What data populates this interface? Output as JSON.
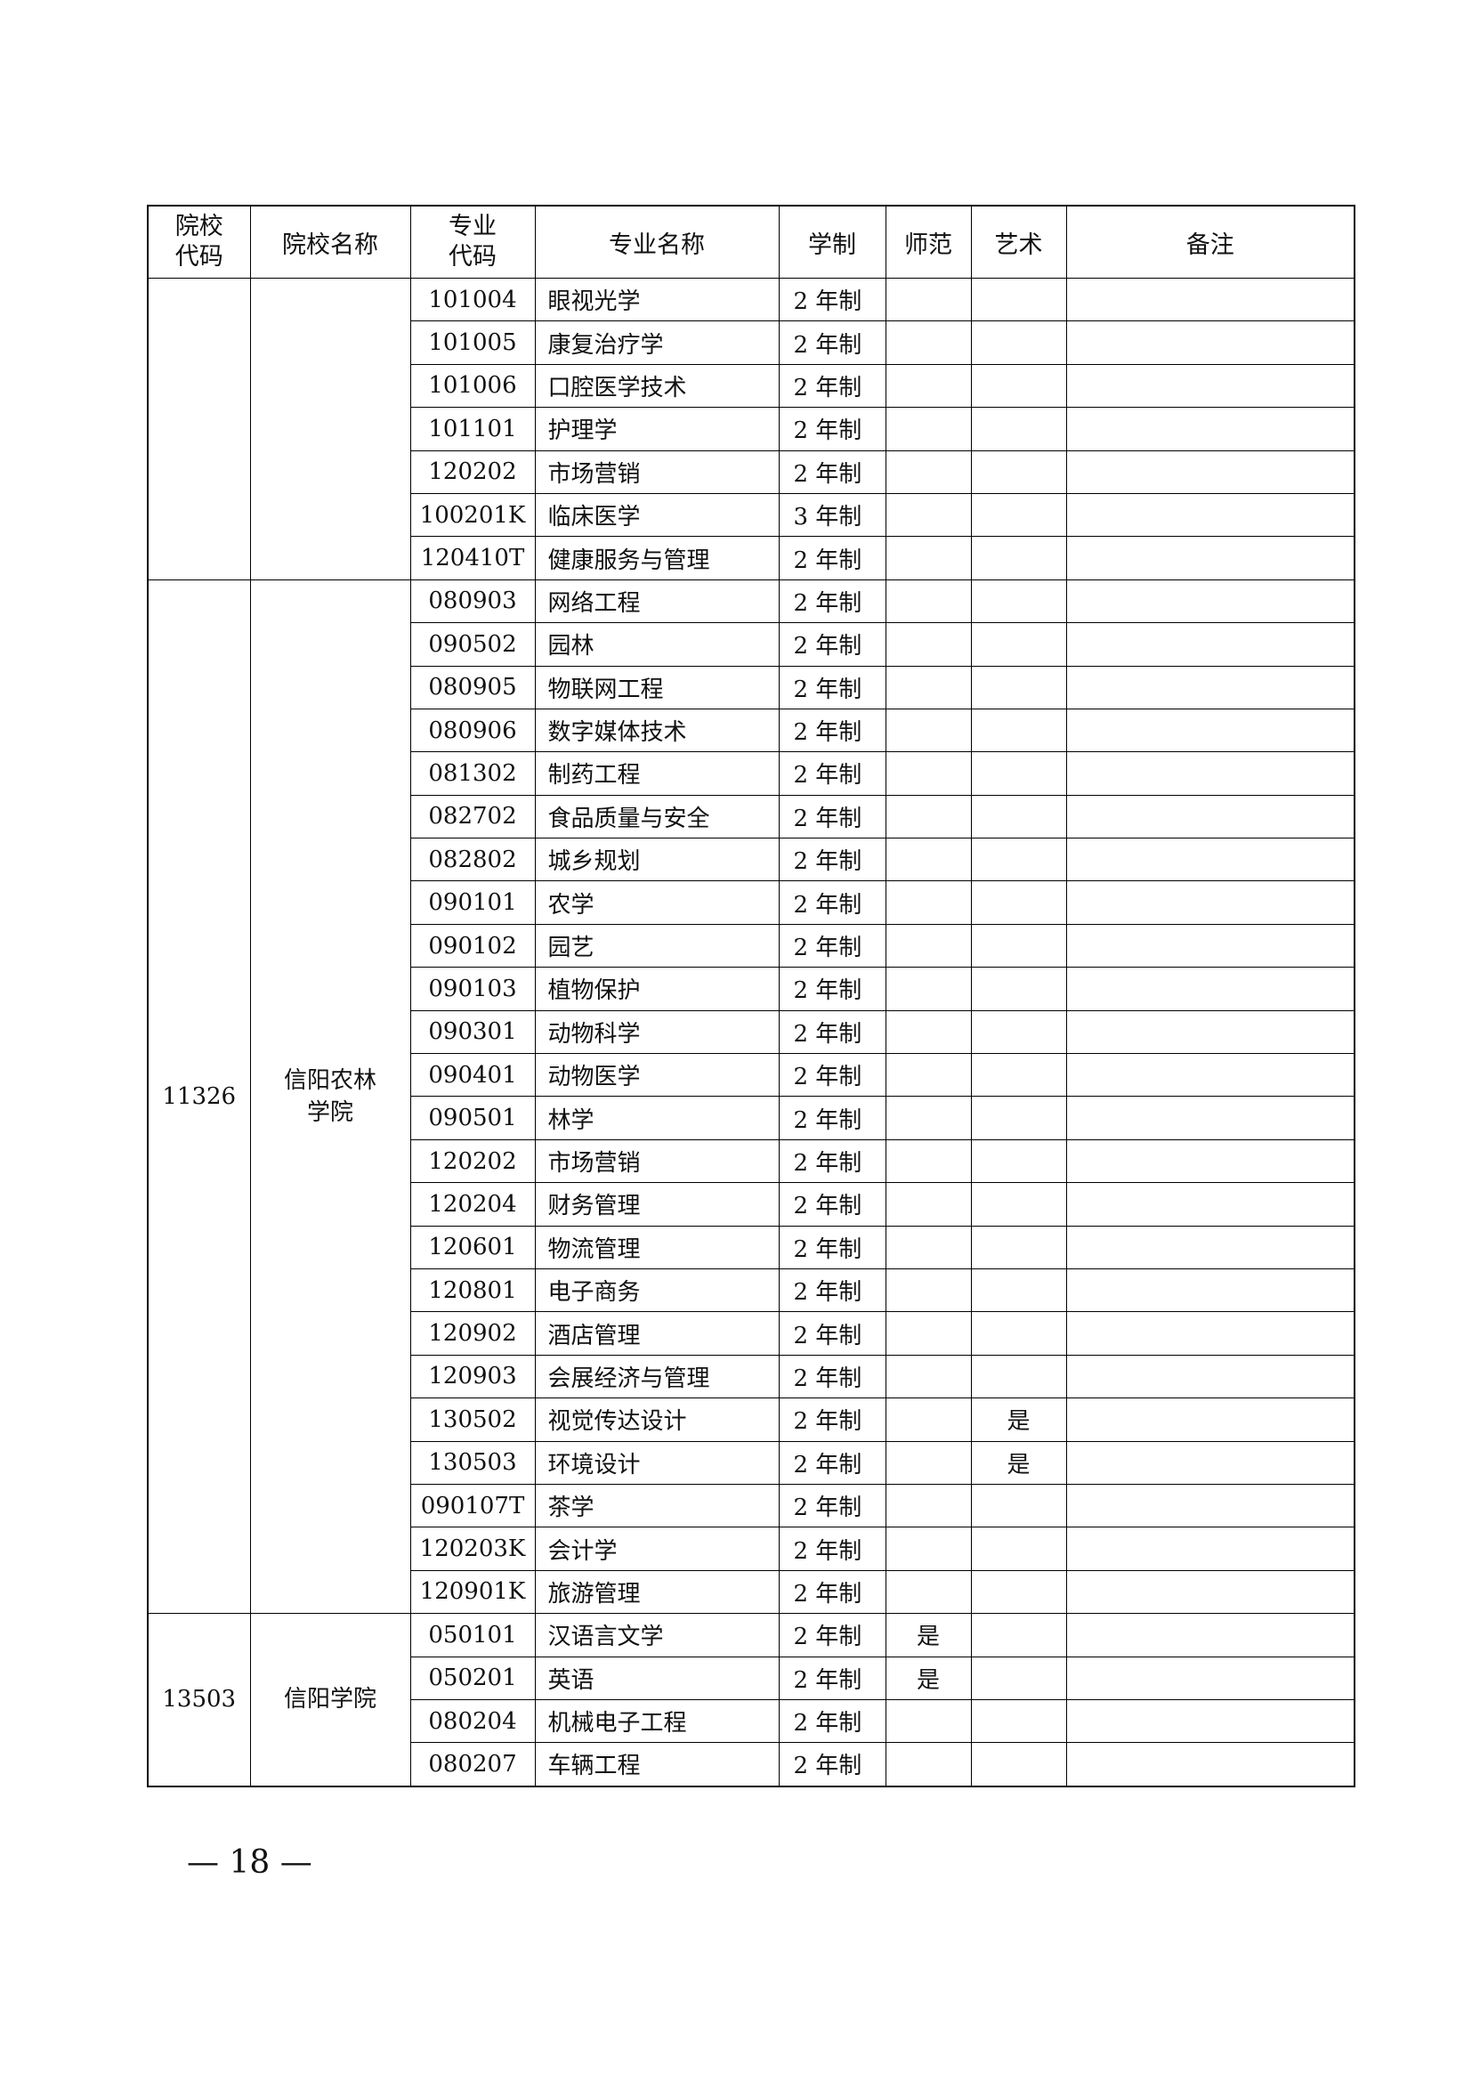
{
  "header": {
    "columns": [
      "院校代码",
      "院校名称",
      "专业代码",
      "专业名称",
      "学制",
      "师范",
      "艺术",
      "备注"
    ]
  },
  "groups": [
    {
      "rows": [
        {
          "code": "101004",
          "name": "眼视光学",
          "duration": "2 年制"
        },
        {
          "code": "101005",
          "name": "康复治疗学",
          "duration": "2 年制"
        },
        {
          "code": "101006",
          "name": "口腔医学技术",
          "duration": "2 年制"
        },
        {
          "code": "101101",
          "name": "护理学",
          "duration": "2 年制"
        },
        {
          "code": "120202",
          "name": "市场营销",
          "duration": "2 年制"
        },
        {
          "code": "100201K",
          "name": "临床医学",
          "duration": "3 年制"
        },
        {
          "code": "120410T",
          "name": "健康服务与管理",
          "duration": "2 年制"
        }
      ]
    },
    {
      "school_code": "11326",
      "school_name": "信阳农林学院",
      "rows": [
        {
          "code": "080903",
          "name": "网络工程",
          "duration": "2 年制"
        },
        {
          "code": "090502",
          "name": "园林",
          "duration": "2 年制"
        },
        {
          "code": "080905",
          "name": "物联网工程",
          "duration": "2 年制"
        },
        {
          "code": "080906",
          "name": "数字媒体技术",
          "duration": "2 年制"
        },
        {
          "code": "081302",
          "name": "制药工程",
          "duration": "2 年制"
        },
        {
          "code": "082702",
          "name": "食品质量与安全",
          "duration": "2 年制"
        },
        {
          "code": "082802",
          "name": "城乡规划",
          "duration": "2 年制"
        },
        {
          "code": "090101",
          "name": "农学",
          "duration": "2 年制"
        },
        {
          "code": "090102",
          "name": "园艺",
          "duration": "2 年制"
        },
        {
          "code": "090103",
          "name": "植物保护",
          "duration": "2 年制"
        },
        {
          "code": "090301",
          "name": "动物科学",
          "duration": "2 年制"
        },
        {
          "code": "090401",
          "name": "动物医学",
          "duration": "2 年制"
        },
        {
          "code": "090501",
          "name": "林学",
          "duration": "2 年制"
        },
        {
          "code": "120202",
          "name": "市场营销",
          "duration": "2 年制"
        },
        {
          "code": "120204",
          "name": "财务管理",
          "duration": "2 年制"
        },
        {
          "code": "120601",
          "name": "物流管理",
          "duration": "2 年制"
        },
        {
          "code": "120801",
          "name": "电子商务",
          "duration": "2 年制"
        },
        {
          "code": "120902",
          "name": "酒店管理",
          "duration": "2 年制"
        },
        {
          "code": "120903",
          "name": "会展经济与管理",
          "duration": "2 年制"
        },
        {
          "code": "130502",
          "name": "视觉传达设计",
          "duration": "2 年制",
          "art": "是"
        },
        {
          "code": "130503",
          "name": "环境设计",
          "duration": "2 年制",
          "art": "是"
        },
        {
          "code": "090107T",
          "name": "茶学",
          "duration": "2 年制"
        },
        {
          "code": "120203K",
          "name": "会计学",
          "duration": "2 年制"
        },
        {
          "code": "120901K",
          "name": "旅游管理",
          "duration": "2 年制"
        }
      ]
    },
    {
      "school_code": "13503",
      "school_name": "信阳学院",
      "rows": [
        {
          "code": "050101",
          "name": "汉语言文学",
          "duration": "2 年制",
          "teacher": "是"
        },
        {
          "code": "050201",
          "name": "英语",
          "duration": "2 年制",
          "teacher": "是"
        },
        {
          "code": "080204",
          "name": "机械电子工程",
          "duration": "2 年制"
        },
        {
          "code": "080207",
          "name": "车辆工程",
          "duration": "2 年制"
        }
      ]
    }
  ],
  "page_number": "— 18 —"
}
